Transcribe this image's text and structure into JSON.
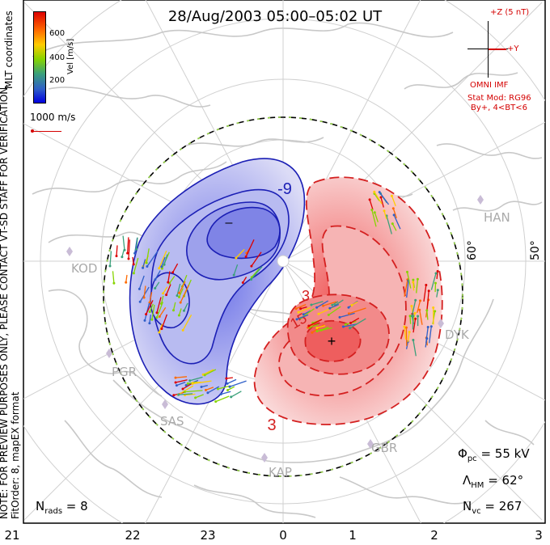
{
  "title": "28/Aug/2003 05:00–05:02 UT",
  "imf": {
    "scale_label": "+Z (5 nT)",
    "y_label": "+Y",
    "source": "OMNI IMF",
    "model": "Stat Mod: RG96",
    "condition": "By+, 4<BT<6"
  },
  "colorbar": {
    "label": "Vel [m/s]",
    "ticks": [
      "600",
      "400",
      "200"
    ],
    "colors": [
      "#0000e0",
      "#2f5fc8",
      "#3aa07a",
      "#86d400",
      "#ffcc00",
      "#ff6a00",
      "#dd0000"
    ]
  },
  "coordinates_label": "MLT coordinates",
  "vector_scale": "1000 m/s",
  "preview_note_1": "NOTE: FOR PREVIEW PURPOSES ONLY, PLEASE CONTACT VT-SD STAFF FOR VERIFICATION.",
  "preview_note_2": "FitOrder: 8, mapEX format",
  "stats": {
    "phi_symbol": "Φ",
    "phi_sub": "pc",
    "phi_value": " = 55 kV",
    "lambda_symbol": "Λ",
    "lambda_sub": "HM",
    "lambda_value": " = 62°",
    "nvc_symbol": "N",
    "nvc_sub": "vc",
    "nvc_value": " = 267",
    "nrads_symbol": "N",
    "nrads_sub": "rads",
    "nrads_value": " = 8"
  },
  "mlt_ticks": [
    "21",
    "22",
    "23",
    "0",
    "1",
    "2",
    "3"
  ],
  "latitude_labels": [
    "60°",
    "50°"
  ],
  "radar_sites": [
    "KOD",
    "PGR",
    "SAS",
    "KAP",
    "GBR",
    "HAN",
    "DYK"
  ],
  "contours": {
    "negative_label": "-9",
    "positive_labels": [
      "3",
      "15",
      "3"
    ],
    "min_marker": "–",
    "max_marker": "+"
  },
  "colors": {
    "negative_fill": "#6f75e8",
    "positive_fill": "#f08a8a",
    "negative_line": "#1b1fb5",
    "positive_line": "#d42020",
    "coast": "#c8c8c8",
    "boundary_green": "#9ad84a"
  }
}
